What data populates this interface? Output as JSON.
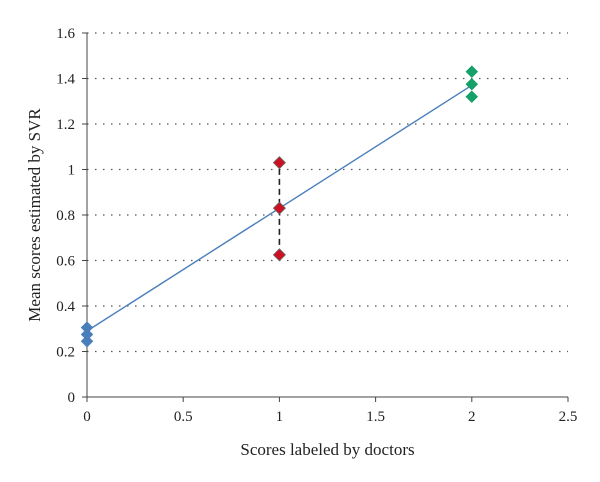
{
  "chart_data": {
    "type": "scatter",
    "title": "",
    "xlabel": "Scores labeled by doctors",
    "ylabel": "Mean scores estimated by SVR",
    "xlim": [
      0,
      2.5
    ],
    "ylim": [
      0,
      1.6
    ],
    "x_ticks": [
      "0",
      "0.5",
      "1",
      "1.5",
      "2",
      "2.5"
    ],
    "y_ticks": [
      "0",
      "0.2",
      "0.4",
      "0.6",
      "0.8",
      "1",
      "1.2",
      "1.4",
      "1.6"
    ],
    "grid": "horizontal dotted",
    "marker": "diamond",
    "series": [
      {
        "color": "#4a7ebb",
        "x": [
          0,
          0,
          0
        ],
        "y": [
          0.305,
          0.275,
          0.245
        ]
      },
      {
        "color": "#cc1122",
        "x": [
          1,
          1,
          1
        ],
        "y": [
          1.03,
          0.83,
          0.625
        ]
      },
      {
        "color": "#16a06a",
        "x": [
          2,
          2,
          2
        ],
        "y": [
          1.43,
          1.375,
          1.32
        ]
      }
    ],
    "fit_line": {
      "color": "#4a7ebb",
      "x": [
        0,
        2
      ],
      "y": [
        0.29,
        1.37
      ]
    },
    "error_bar": {
      "color": "#222222",
      "x": 1,
      "y_low": 0.625,
      "y_high": 1.03,
      "style": "dashed"
    }
  }
}
